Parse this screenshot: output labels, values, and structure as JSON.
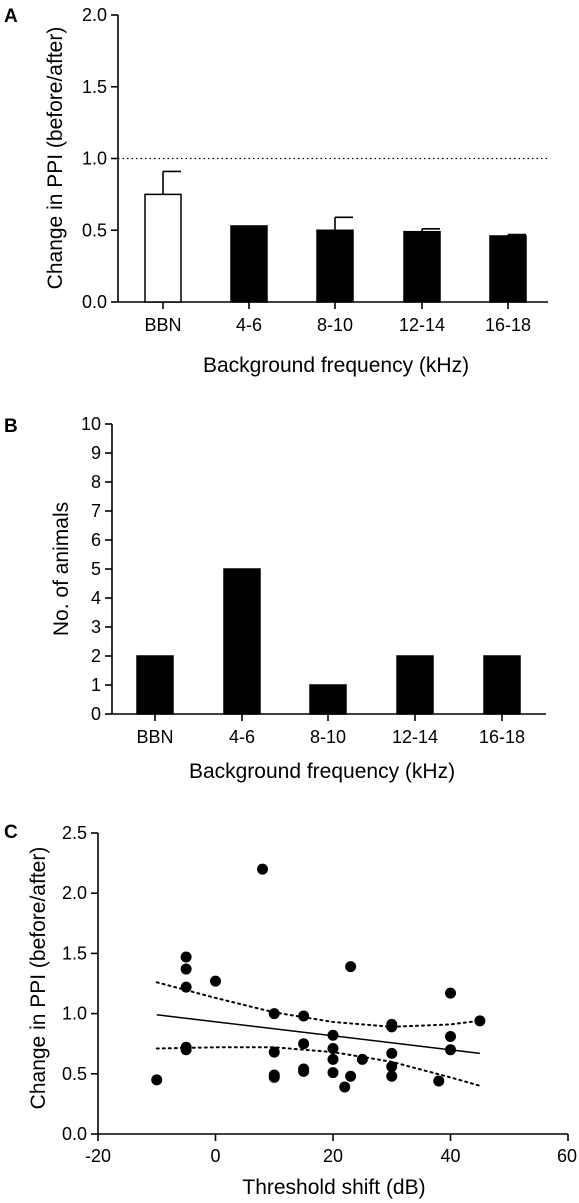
{
  "chart_data": [
    {
      "panel": "A",
      "type": "bar",
      "xlabel": "Background frequency (kHz)",
      "ylabel": "Change in PPI (before/after)",
      "categories": [
        "BBN",
        "4-6",
        "8-10",
        "12-14",
        "16-18"
      ],
      "values": [
        0.75,
        0.53,
        0.5,
        0.49,
        0.46
      ],
      "error_upper": [
        0.91,
        0.53,
        0.59,
        0.51,
        0.47
      ],
      "bar_fill": [
        "#ffffff",
        "#000000",
        "#000000",
        "#000000",
        "#000000"
      ],
      "ylim": [
        0,
        2.0
      ],
      "yticks": [
        "0.0",
        "0.5",
        "1.0",
        "1.5",
        "2.0"
      ],
      "reference_line": 1.0,
      "grid": false
    },
    {
      "panel": "B",
      "type": "bar",
      "xlabel": "Background frequency (kHz)",
      "ylabel": "No. of animals",
      "categories": [
        "BBN",
        "4-6",
        "8-10",
        "12-14",
        "16-18"
      ],
      "values": [
        2,
        5,
        1,
        2,
        2
      ],
      "ylim": [
        0,
        10
      ],
      "yticks": [
        "0",
        "1",
        "2",
        "3",
        "4",
        "5",
        "6",
        "7",
        "8",
        "9",
        "10"
      ],
      "grid": false
    },
    {
      "panel": "C",
      "type": "scatter",
      "xlabel": "Threshold shift (dB)",
      "ylabel": "Change in PPI (before/after)",
      "xlim": [
        -20,
        60
      ],
      "ylim": [
        0,
        2.5
      ],
      "xticks": [
        "-20",
        "0",
        "20",
        "40",
        "60"
      ],
      "yticks": [
        "0.0",
        "0.5",
        "1.0",
        "1.5",
        "2.0",
        "2.5"
      ],
      "points": [
        {
          "x": -10,
          "y": 0.45
        },
        {
          "x": -5,
          "y": 1.47
        },
        {
          "x": -5,
          "y": 1.37
        },
        {
          "x": -5,
          "y": 1.22
        },
        {
          "x": -5,
          "y": 0.72
        },
        {
          "x": -5,
          "y": 0.7
        },
        {
          "x": 0,
          "y": 1.27
        },
        {
          "x": 8,
          "y": 2.2
        },
        {
          "x": 10,
          "y": 1.0
        },
        {
          "x": 10,
          "y": 0.68
        },
        {
          "x": 10,
          "y": 0.49
        },
        {
          "x": 10,
          "y": 0.47
        },
        {
          "x": 15,
          "y": 0.98
        },
        {
          "x": 15,
          "y": 0.75
        },
        {
          "x": 15,
          "y": 0.54
        },
        {
          "x": 15,
          "y": 0.52
        },
        {
          "x": 20,
          "y": 0.82
        },
        {
          "x": 20,
          "y": 0.71
        },
        {
          "x": 20,
          "y": 0.62
        },
        {
          "x": 20,
          "y": 0.51
        },
        {
          "x": 22,
          "y": 0.39
        },
        {
          "x": 23,
          "y": 1.39
        },
        {
          "x": 23,
          "y": 0.48
        },
        {
          "x": 25,
          "y": 0.62
        },
        {
          "x": 30,
          "y": 0.91
        },
        {
          "x": 30,
          "y": 0.89
        },
        {
          "x": 30,
          "y": 0.67
        },
        {
          "x": 30,
          "y": 0.56
        },
        {
          "x": 30,
          "y": 0.48
        },
        {
          "x": 38,
          "y": 0.44
        },
        {
          "x": 40,
          "y": 1.17
        },
        {
          "x": 40,
          "y": 0.81
        },
        {
          "x": 40,
          "y": 0.7
        },
        {
          "x": 45,
          "y": 0.94
        }
      ],
      "regression_line": [
        {
          "x": -10,
          "y": 0.99
        },
        {
          "x": 45,
          "y": 0.67
        }
      ],
      "ci_upper": [
        {
          "x": -10,
          "y": 1.26
        },
        {
          "x": 0,
          "y": 1.13
        },
        {
          "x": 10,
          "y": 1.01
        },
        {
          "x": 20,
          "y": 0.93
        },
        {
          "x": 30,
          "y": 0.89
        },
        {
          "x": 40,
          "y": 0.91
        },
        {
          "x": 45,
          "y": 0.94
        }
      ],
      "ci_lower": [
        {
          "x": -10,
          "y": 0.71
        },
        {
          "x": 0,
          "y": 0.72
        },
        {
          "x": 10,
          "y": 0.72
        },
        {
          "x": 20,
          "y": 0.68
        },
        {
          "x": 30,
          "y": 0.6
        },
        {
          "x": 40,
          "y": 0.47
        },
        {
          "x": 45,
          "y": 0.4
        }
      ],
      "grid": false
    }
  ],
  "panel_labels": [
    "A",
    "B",
    "C"
  ]
}
